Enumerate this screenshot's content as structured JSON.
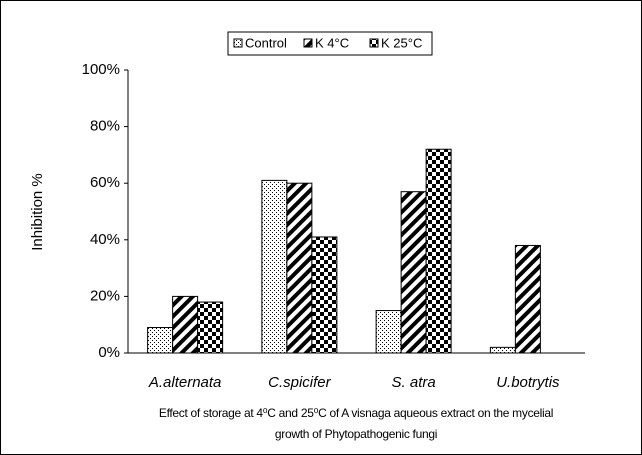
{
  "chart_data": {
    "type": "bar",
    "ylabel": "Inhibition %",
    "caption": [
      "Effect of storage at 4⁰C and 25⁰C of A visnaga aqueous extract on the mycelial",
      "growth of Phytopathogenic fungi"
    ],
    "categories": [
      "A.alternata",
      "C.spicifer",
      "S. atra",
      "U.botrytis"
    ],
    "series": [
      {
        "name": "Control",
        "color": "#000000",
        "pattern": "dots",
        "values": [
          9,
          61,
          15,
          2
        ]
      },
      {
        "name": "K 4°C",
        "color": "#000000",
        "pattern": "stripes",
        "values": [
          20,
          60,
          57,
          38
        ]
      },
      {
        "name": "K 25°C",
        "color": "#000000",
        "pattern": "checks",
        "values": [
          18,
          41,
          72,
          null
        ]
      }
    ],
    "ylim": [
      0,
      100
    ],
    "yticks": [
      {
        "value": 0,
        "label": "0%"
      },
      {
        "value": 20,
        "label": "20%"
      },
      {
        "value": 40,
        "label": "40%"
      },
      {
        "value": 60,
        "label": "60%"
      },
      {
        "value": 80,
        "label": "80%"
      },
      {
        "value": 100,
        "label": "100%"
      }
    ],
    "grid": false,
    "legend": "top"
  }
}
